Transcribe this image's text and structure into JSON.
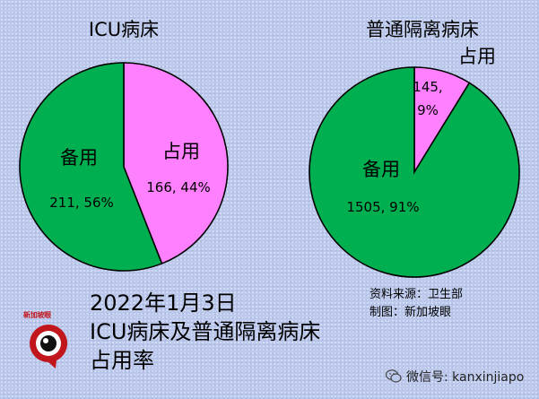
{
  "chart_data": [
    {
      "type": "pie",
      "title": "ICU病床",
      "slices": [
        {
          "label": "占用",
          "value": 166,
          "percent": "44%",
          "color": "#ff80ff"
        },
        {
          "label": "备用",
          "value": 211,
          "percent": "56%",
          "color": "#00b050"
        }
      ]
    },
    {
      "type": "pie",
      "title": "普通隔离病床",
      "slices": [
        {
          "label": "占用",
          "value": 145,
          "percent": "9%",
          "color": "#ff80ff"
        },
        {
          "label": "备用",
          "value": 1505,
          "percent": "91%",
          "color": "#00b050"
        }
      ]
    }
  ],
  "caption": {
    "line1": "2022年1月3日",
    "line2": "ICU病床及普通隔离病床",
    "line3": "占用率"
  },
  "source": {
    "line1": "资料来源：卫生部",
    "line2": "制图：新加坡眼"
  },
  "logo": {
    "text": "新加坡眼",
    "icon": "eye-logo-icon",
    "color": "#c0161c"
  },
  "wechat": {
    "text": "微信号: kanxinjiapo",
    "icon": "wechat-icon"
  }
}
